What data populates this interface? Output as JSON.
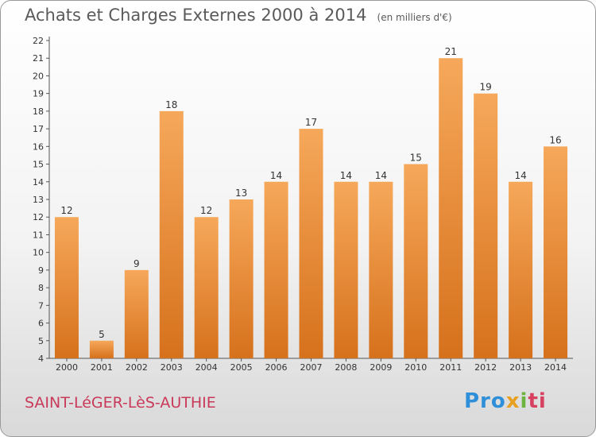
{
  "chart_data": {
    "type": "bar",
    "title": "Achats et Charges Externes 2000 à 2014",
    "subtitle": "(en milliers d'€)",
    "categories": [
      "2000",
      "2001",
      "2002",
      "2003",
      "2004",
      "2005",
      "2006",
      "2007",
      "2008",
      "2009",
      "2010",
      "2011",
      "2012",
      "2013",
      "2014"
    ],
    "values": [
      12,
      5,
      9,
      18,
      12,
      13,
      14,
      17,
      14,
      14,
      15,
      21,
      19,
      14,
      16
    ],
    "ylim": [
      4,
      22
    ],
    "yticks": [
      4,
      5,
      6,
      7,
      8,
      9,
      10,
      11,
      12,
      13,
      14,
      15,
      16,
      17,
      18,
      19,
      20,
      21,
      22
    ],
    "grid": false,
    "bar_color": "#f0913a",
    "xlabel": "",
    "ylabel": ""
  },
  "footer": {
    "town": "SAINT-LéGER-LèS-AUTHIE",
    "logo": [
      "Pro",
      "x",
      "i",
      "ti"
    ]
  }
}
